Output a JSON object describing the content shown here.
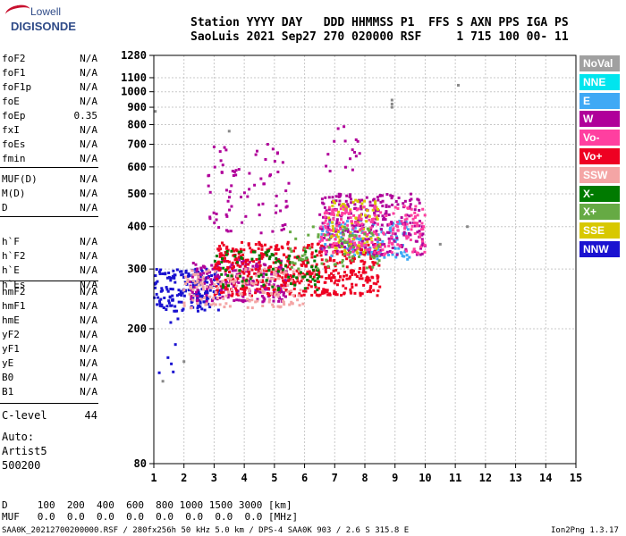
{
  "logo": {
    "top": "Lowell",
    "bottom": "DIGISONDE"
  },
  "header": {
    "line1": "Station YYYY DAY   DDD HHMMSS P1  FFS S AXN PPS IGA PS",
    "line2": "SaoLuis 2021 Sep27 270 020000 RSF     1 715 100 00- 11"
  },
  "params_a": [
    {
      "label": "foF2",
      "value": "N/A"
    },
    {
      "label": "foF1",
      "value": "N/A"
    },
    {
      "label": "foF1p",
      "value": "N/A"
    },
    {
      "label": "foE",
      "value": "N/A"
    },
    {
      "label": "foEp",
      "value": "0.35"
    },
    {
      "label": "fxI",
      "value": "N/A"
    },
    {
      "label": "foEs",
      "value": "N/A"
    },
    {
      "label": "fmin",
      "value": "N/A"
    }
  ],
  "params_b": [
    {
      "label": "MUF(D)",
      "value": "N/A"
    },
    {
      "label": "M(D)",
      "value": "N/A"
    },
    {
      "label": "D",
      "value": "N/A"
    }
  ],
  "params_c": [
    {
      "label": "h`F",
      "value": "N/A"
    },
    {
      "label": "h`F2",
      "value": "N/A"
    },
    {
      "label": "h`E",
      "value": "N/A"
    },
    {
      "label": "h`Es",
      "value": "N/A"
    }
  ],
  "params_d": [
    {
      "label": "hmF2",
      "value": "N/A"
    },
    {
      "label": "hmF1",
      "value": "N/A"
    },
    {
      "label": "hmE",
      "value": "N/A"
    },
    {
      "label": "yF2",
      "value": "N/A"
    },
    {
      "label": "yF1",
      "value": "N/A"
    },
    {
      "label": "yE",
      "value": "N/A"
    },
    {
      "label": "B0",
      "value": "N/A"
    },
    {
      "label": "B1",
      "value": "N/A"
    }
  ],
  "clevel": {
    "label": "C-level",
    "value": "44"
  },
  "autoscale": [
    "Auto:",
    "Artist5",
    "500200"
  ],
  "legend": [
    {
      "label": "NoVal",
      "color": "#a0a0a0"
    },
    {
      "label": "NNE",
      "color": "#00e5ee"
    },
    {
      "label": "E",
      "color": "#3fa9f5"
    },
    {
      "label": "W",
      "color": "#b0009a"
    },
    {
      "label": "Vo-",
      "color": "#ff3fa0"
    },
    {
      "label": "Vo+",
      "color": "#ee0022"
    },
    {
      "label": "SSW",
      "color": "#f4a5a5"
    },
    {
      "label": "X-",
      "color": "#007a00"
    },
    {
      "label": "X+",
      "color": "#66aa44"
    },
    {
      "label": "SSE",
      "color": "#d8c800"
    },
    {
      "label": "NNW",
      "color": "#1a12d0"
    }
  ],
  "footer": {
    "d_line": "D     100  200  400  600  800 1000 1500 3000 [km]",
    "muf_line": "MUF   0.0  0.0  0.0  0.0  0.0  0.0  0.0  0.0 [MHz]",
    "info": "SAA0K_20212700200000.RSF / 280fx256h 50 kHz 5.0 km / DPS-4 SAA0K 903 / 2.6 S 315.8 E",
    "version": "Ion2Png 1.3.17"
  },
  "chart_data": {
    "type": "scatter",
    "title": "",
    "xlabel": "",
    "ylabel": "",
    "xlim": [
      1,
      15
    ],
    "ylim": [
      80,
      1280
    ],
    "x_scale": "linear",
    "y_scale": "log",
    "x_ticks": [
      1,
      2,
      3,
      4,
      5,
      6,
      7,
      8,
      9,
      10,
      11,
      12,
      13,
      14,
      15
    ],
    "y_ticks": [
      80,
      200,
      300,
      400,
      500,
      600,
      700,
      800,
      900,
      1000,
      1100,
      1280
    ],
    "grid": true,
    "legend_position": "right",
    "description_clusters": [
      {
        "name": "NNW",
        "x_range": [
          1.0,
          3.2
        ],
        "y_range": [
          225,
          300
        ],
        "density": 0.75
      },
      {
        "name": "W",
        "x_range": [
          2.2,
          5.5
        ],
        "y_range": [
          240,
          320
        ],
        "density": 0.6
      },
      {
        "name": "Vo+",
        "x_range": [
          3.0,
          8.5
        ],
        "y_range": [
          250,
          360
        ],
        "density": 0.7
      },
      {
        "name": "SSW",
        "x_range": [
          2.0,
          6.0
        ],
        "y_range": [
          230,
          300
        ],
        "density": 0.4
      },
      {
        "name": "X-",
        "x_range": [
          3.0,
          6.5
        ],
        "y_range": [
          260,
          340
        ],
        "density": 0.25
      },
      {
        "name": "E",
        "x_range": [
          6.5,
          9.5
        ],
        "y_range": [
          320,
          420
        ],
        "density": 0.4
      },
      {
        "name": "W",
        "x_range": [
          6.5,
          10.0
        ],
        "y_range": [
          330,
          500
        ],
        "density": 0.45
      },
      {
        "name": "SSE",
        "x_range": [
          6.8,
          8.5
        ],
        "y_range": [
          330,
          480
        ],
        "density": 0.35
      },
      {
        "name": "Vo-",
        "x_range": [
          6.5,
          10.0
        ],
        "y_range": [
          330,
          460
        ],
        "density": 0.45
      },
      {
        "name": "X+",
        "x_range": [
          5.5,
          8.5
        ],
        "y_range": [
          300,
          400
        ],
        "density": 0.2
      },
      {
        "name": "W",
        "x_range": [
          2.8,
          5.5
        ],
        "y_range": [
          380,
          700
        ],
        "density": 0.12
      },
      {
        "name": "W",
        "x_range": [
          6.7,
          7.9
        ],
        "y_range": [
          560,
          790
        ],
        "density": 0.1
      },
      {
        "name": "NNW",
        "x_range": [
          1.0,
          1.8
        ],
        "y_range": [
          140,
          220
        ],
        "density": 0.05
      }
    ],
    "isolated_points": [
      {
        "name": "W",
        "x": 8.9,
        "y": 900
      },
      {
        "name": "W",
        "x": 8.9,
        "y": 920
      },
      {
        "name": "SSW",
        "x": 8.9,
        "y": 945
      },
      {
        "name": "SSW",
        "x": 11.1,
        "y": 1045
      },
      {
        "name": "NNE",
        "x": 1.05,
        "y": 875
      },
      {
        "name": "E",
        "x": 3.5,
        "y": 765
      },
      {
        "name": "NNW",
        "x": 2.0,
        "y": 160
      },
      {
        "name": "NNW",
        "x": 1.3,
        "y": 140
      },
      {
        "name": "W",
        "x": 11.4,
        "y": 400
      },
      {
        "name": "W",
        "x": 10.5,
        "y": 355
      }
    ]
  }
}
